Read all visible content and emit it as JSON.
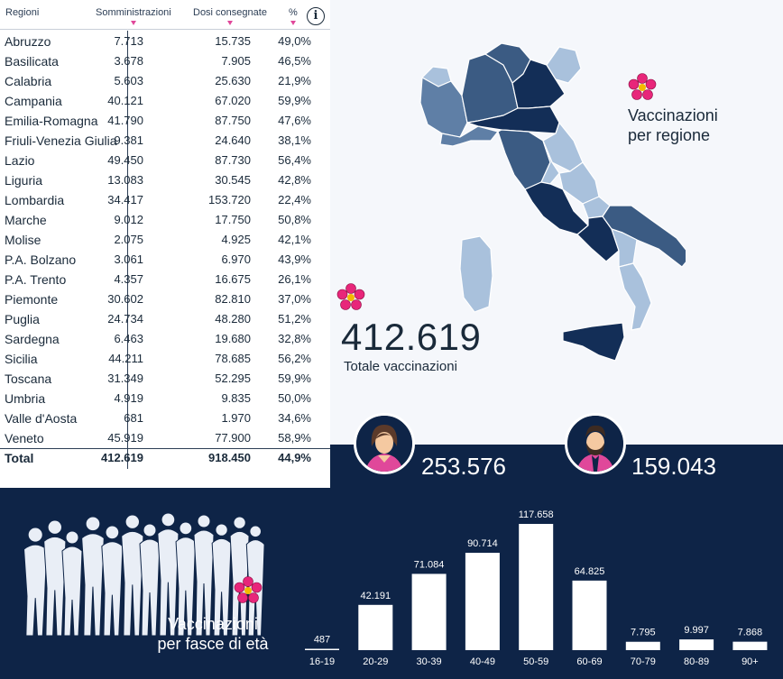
{
  "table": {
    "headers": {
      "region": "Regioni",
      "administered": "Somministrazioni",
      "delivered": "Dosi consegnate",
      "percent": "%"
    },
    "info_icon": "info-icon",
    "rows": [
      {
        "region": "Abruzzo",
        "administered": "7.713",
        "delivered": "15.735",
        "percent": "49,0%"
      },
      {
        "region": "Basilicata",
        "administered": "3.678",
        "delivered": "7.905",
        "percent": "46,5%"
      },
      {
        "region": "Calabria",
        "administered": "5.603",
        "delivered": "25.630",
        "percent": "21,9%"
      },
      {
        "region": "Campania",
        "administered": "40.121",
        "delivered": "67.020",
        "percent": "59,9%"
      },
      {
        "region": "Emilia-Romagna",
        "administered": "41.790",
        "delivered": "87.750",
        "percent": "47,6%"
      },
      {
        "region": "Friuli-Venezia Giulia",
        "administered": "9.381",
        "delivered": "24.640",
        "percent": "38,1%"
      },
      {
        "region": "Lazio",
        "administered": "49.450",
        "delivered": "87.730",
        "percent": "56,4%"
      },
      {
        "region": "Liguria",
        "administered": "13.083",
        "delivered": "30.545",
        "percent": "42,8%"
      },
      {
        "region": "Lombardia",
        "administered": "34.417",
        "delivered": "153.720",
        "percent": "22,4%"
      },
      {
        "region": "Marche",
        "administered": "9.012",
        "delivered": "17.750",
        "percent": "50,8%"
      },
      {
        "region": "Molise",
        "administered": "2.075",
        "delivered": "4.925",
        "percent": "42,1%"
      },
      {
        "region": "P.A. Bolzano",
        "administered": "3.061",
        "delivered": "6.970",
        "percent": "43,9%"
      },
      {
        "region": "P.A. Trento",
        "administered": "4.357",
        "delivered": "16.675",
        "percent": "26,1%"
      },
      {
        "region": "Piemonte",
        "administered": "30.602",
        "delivered": "82.810",
        "percent": "37,0%"
      },
      {
        "region": "Puglia",
        "administered": "24.734",
        "delivered": "48.280",
        "percent": "51,2%"
      },
      {
        "region": "Sardegna",
        "administered": "6.463",
        "delivered": "19.680",
        "percent": "32,8%"
      },
      {
        "region": "Sicilia",
        "administered": "44.211",
        "delivered": "78.685",
        "percent": "56,2%"
      },
      {
        "region": "Toscana",
        "administered": "31.349",
        "delivered": "52.295",
        "percent": "59,9%"
      },
      {
        "region": "Umbria",
        "administered": "4.919",
        "delivered": "9.835",
        "percent": "50,0%"
      },
      {
        "region": "Valle d'Aosta",
        "administered": "681",
        "delivered": "1.970",
        "percent": "34,6%"
      },
      {
        "region": "Veneto",
        "administered": "45.919",
        "delivered": "77.900",
        "percent": "58,9%"
      }
    ],
    "total": {
      "region": "Total",
      "administered": "412.619",
      "delivered": "918.450",
      "percent": "44,9%"
    }
  },
  "map": {
    "title_line1": "Vaccinazioni",
    "title_line2": "per regione"
  },
  "summary": {
    "total_value": "412.619",
    "total_label": "Totale vaccinazioni"
  },
  "gender": {
    "female_value": "253.576",
    "male_value": "159.043"
  },
  "age_section": {
    "title_line1": "Vaccinazioni",
    "title_line2": "per fasce di età"
  },
  "colors": {
    "dark_navy": "#0e2447",
    "accent_pink": "#e0489a",
    "flower": "#e8267a",
    "map_dark": "#132e57",
    "map_mid": "#5f7fa6",
    "map_light": "#a9c1dc"
  },
  "chart_data": {
    "type": "bar",
    "categories": [
      "16-19",
      "20-29",
      "30-39",
      "40-49",
      "50-59",
      "60-69",
      "70-79",
      "80-89",
      "90+"
    ],
    "values": [
      487,
      42191,
      71084,
      90714,
      117658,
      64825,
      7795,
      9997,
      7868
    ],
    "labels": [
      "487",
      "42.191",
      "71.084",
      "90.714",
      "117.658",
      "64.825",
      "7.795",
      "9.997",
      "7.868"
    ],
    "title": "",
    "xlabel": "",
    "ylabel": "",
    "grid": false
  }
}
